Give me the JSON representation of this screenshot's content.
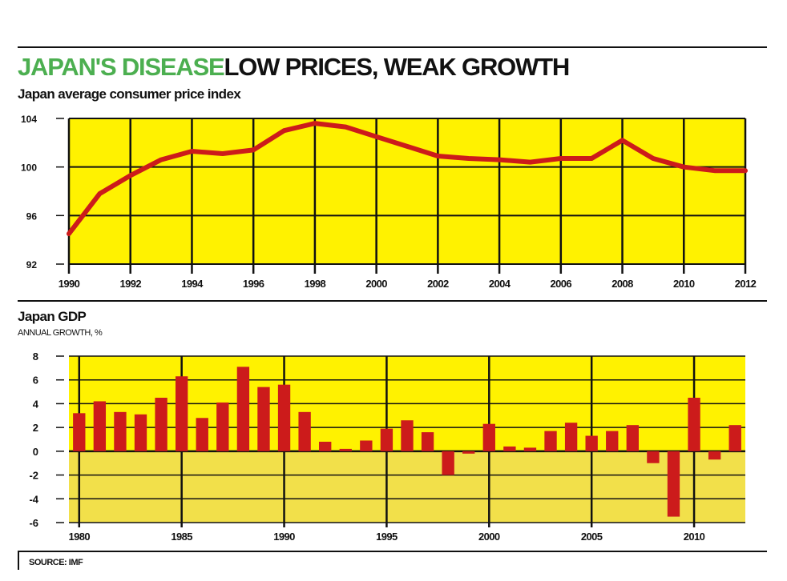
{
  "headline": {
    "part1": "JAPAN'S DISEASE",
    "part2": "LOW PRICES, WEAK GROWTH"
  },
  "colors": {
    "accent_green": "#4caf50",
    "panel_yellow": "#fff200",
    "negative_yellow": "#f2e04a",
    "series_red": "#cc1b1b"
  },
  "source": "SOURCE: IMF",
  "chart_data": [
    {
      "type": "line",
      "title": "Japan average consumer price index",
      "xlabel": "",
      "ylabel": "",
      "xlim": [
        1990,
        2012
      ],
      "ylim": [
        92,
        104
      ],
      "x_ticks": [
        1990,
        1992,
        1994,
        1996,
        1998,
        2000,
        2002,
        2004,
        2006,
        2008,
        2010,
        2012
      ],
      "y_ticks": [
        92,
        96,
        100,
        104
      ],
      "grid": true,
      "x": [
        1990,
        1991,
        1992,
        1993,
        1994,
        1995,
        1996,
        1997,
        1998,
        1999,
        2000,
        2001,
        2002,
        2003,
        2004,
        2005,
        2006,
        2007,
        2008,
        2009,
        2010,
        2011,
        2012
      ],
      "series": [
        {
          "values": [
            94.5,
            97.8,
            99.3,
            100.6,
            101.3,
            101.1,
            101.4,
            103.0,
            103.6,
            103.3,
            102.5,
            101.7,
            100.9,
            100.7,
            100.6,
            100.4,
            100.7,
            100.7,
            102.2,
            100.7,
            100.0,
            99.7,
            99.7
          ]
        }
      ]
    },
    {
      "type": "bar",
      "title": "Japan GDP",
      "subtitle": "ANNUAL GROWTH, %",
      "xlabel": "",
      "ylabel": "",
      "xlim": [
        1979.5,
        2012.5
      ],
      "ylim": [
        -6,
        8
      ],
      "x_ticks": [
        1980,
        1985,
        1990,
        1995,
        2000,
        2005,
        2010
      ],
      "y_ticks": [
        -6,
        -4,
        -2,
        0,
        2,
        4,
        6,
        8
      ],
      "grid": true,
      "categories": [
        1980,
        1981,
        1982,
        1983,
        1984,
        1985,
        1986,
        1987,
        1988,
        1989,
        1990,
        1991,
        1992,
        1993,
        1994,
        1995,
        1996,
        1997,
        1998,
        1999,
        2000,
        2001,
        2002,
        2003,
        2004,
        2005,
        2006,
        2007,
        2008,
        2009,
        2010,
        2011,
        2012
      ],
      "values": [
        3.2,
        4.2,
        3.3,
        3.1,
        4.5,
        6.3,
        2.8,
        4.1,
        7.1,
        5.4,
        5.6,
        3.3,
        0.8,
        0.2,
        0.9,
        1.9,
        2.6,
        1.6,
        -2.0,
        -0.2,
        2.3,
        0.4,
        0.3,
        1.7,
        2.4,
        1.3,
        1.7,
        2.2,
        -1.0,
        -5.5,
        4.5,
        -0.7,
        2.2
      ]
    }
  ]
}
